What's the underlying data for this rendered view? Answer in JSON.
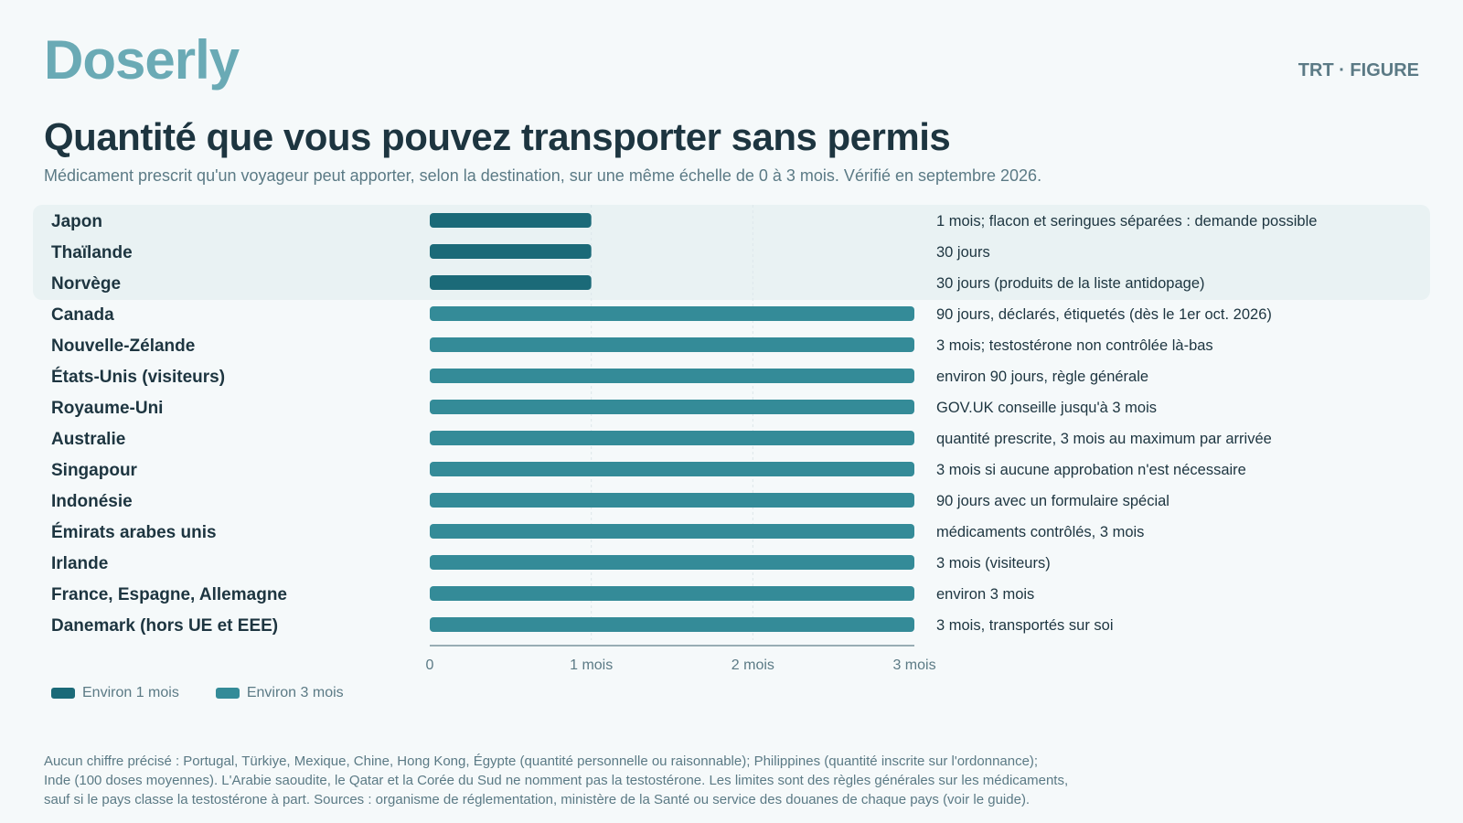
{
  "brand": "Doserly",
  "tag": "TRT · FIGURE",
  "title": "Quantité que vous pouvez transporter sans permis",
  "subtitle": "Médicament prescrit qu'un voyageur peut apporter, selon la destination, sur une même échelle de 0 à 3 mois. Vérifié en septembre 2026.",
  "colors": {
    "short": "#1b6a78",
    "long": "#348b98",
    "highlight_band": "#e9f2f3",
    "grid": "#dde7ea",
    "axis": "#7a949c"
  },
  "chart_data": {
    "type": "bar",
    "orientation": "horizontal",
    "xlim": [
      0,
      3
    ],
    "x_ticks": [
      {
        "value": 0,
        "label": "0"
      },
      {
        "value": 1,
        "label": "1 mois"
      },
      {
        "value": 2,
        "label": "2 mois"
      },
      {
        "value": 3,
        "label": "3 mois"
      }
    ],
    "grid": true,
    "legend_position": "bottom-left",
    "legend": [
      {
        "key": "short",
        "label": "Environ 1 mois"
      },
      {
        "key": "long",
        "label": "Environ 3 mois"
      }
    ],
    "rows": [
      {
        "country": "Japon",
        "value": 1,
        "group": "short",
        "note": "1 mois; flacon et seringues séparées : demande possible"
      },
      {
        "country": "Thaïlande",
        "value": 1,
        "group": "short",
        "note": "30 jours"
      },
      {
        "country": "Norvège",
        "value": 1,
        "group": "short",
        "note": "30 jours (produits de la liste antidopage)"
      },
      {
        "country": "Canada",
        "value": 3,
        "group": "long",
        "note": "90 jours, déclarés, étiquetés (dès le 1er oct. 2026)"
      },
      {
        "country": "Nouvelle-Zélande",
        "value": 3,
        "group": "long",
        "note": "3 mois; testostérone non contrôlée là-bas"
      },
      {
        "country": "États-Unis (visiteurs)",
        "value": 3,
        "group": "long",
        "note": "environ 90 jours, règle générale"
      },
      {
        "country": "Royaume-Uni",
        "value": 3,
        "group": "long",
        "note": "GOV.UK conseille jusqu'à 3 mois"
      },
      {
        "country": "Australie",
        "value": 3,
        "group": "long",
        "note": "quantité prescrite, 3 mois au maximum par arrivée"
      },
      {
        "country": "Singapour",
        "value": 3,
        "group": "long",
        "note": "3 mois si aucune approbation n'est nécessaire"
      },
      {
        "country": "Indonésie",
        "value": 3,
        "group": "long",
        "note": "90 jours avec un formulaire spécial"
      },
      {
        "country": "Émirats arabes unis",
        "value": 3,
        "group": "long",
        "note": "médicaments contrôlés, 3 mois"
      },
      {
        "country": "Irlande",
        "value": 3,
        "group": "long",
        "note": "3 mois (visiteurs)"
      },
      {
        "country": "France, Espagne, Allemagne",
        "value": 3,
        "group": "long",
        "note": "environ 3 mois"
      },
      {
        "country": "Danemark (hors UE et EEE)",
        "value": 3,
        "group": "long",
        "note": "3 mois, transportés sur soi"
      }
    ]
  },
  "footnote": [
    "Aucun chiffre précisé : Portugal, Türkiye, Mexique, Chine, Hong Kong, Égypte (quantité personnelle ou raisonnable); Philippines (quantité inscrite sur l'ordonnance);",
    "Inde (100 doses moyennes). L'Arabie saoudite, le Qatar et la Corée du Sud ne nomment pas la testostérone. Les limites sont des règles générales sur les médicaments,",
    "sauf si le pays classe la testostérone à part. Sources : organisme de réglementation, ministère de la Santé ou service des douanes de chaque pays (voir le guide)."
  ]
}
